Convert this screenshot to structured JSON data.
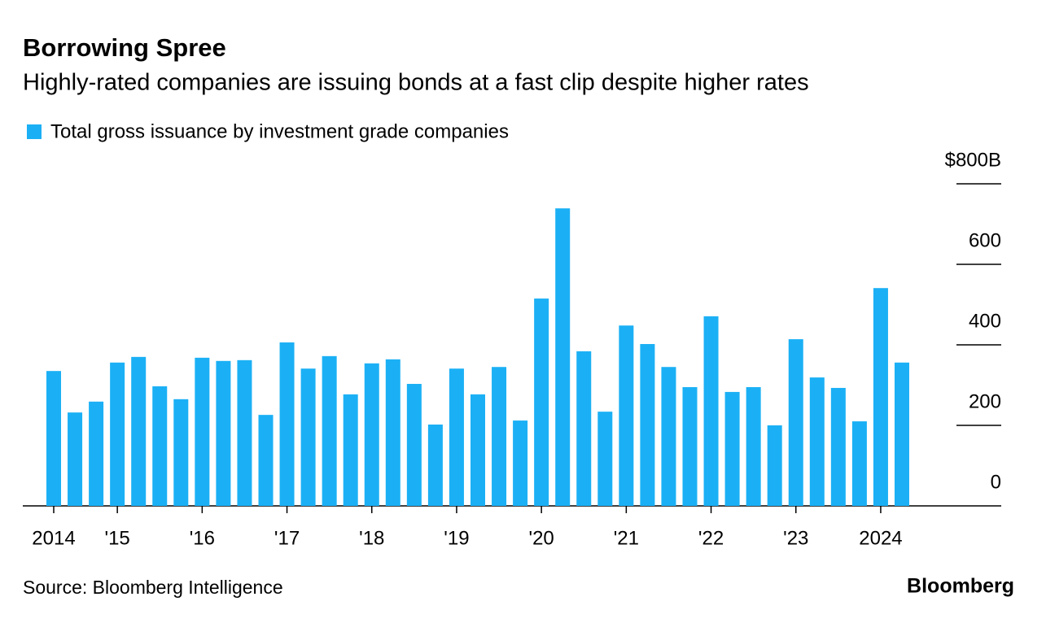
{
  "chart_data": {
    "type": "bar",
    "title": "Borrowing Spree",
    "subtitle": "Highly-rated companies are issuing bonds at a fast clip despite higher rates",
    "source": "Source: Bloomberg Intelligence",
    "brand": "Bloomberg",
    "series": [
      {
        "name": "Total gross issuance by investment grade companies",
        "color": "#1bb0f5",
        "values": [
          335,
          232,
          259,
          356,
          370,
          297,
          265,
          368,
          360,
          362,
          226,
          406,
          341,
          372,
          277,
          354,
          364,
          303,
          202,
          341,
          277,
          345,
          212,
          515,
          739,
          384,
          234,
          448,
          402,
          345,
          295,
          471,
          283,
          295,
          200,
          414,
          319,
          293,
          210,
          541,
          356
        ]
      }
    ],
    "categories": [
      "2014",
      null,
      null,
      "'15",
      null,
      null,
      null,
      "'16",
      null,
      null,
      null,
      "'17",
      null,
      null,
      null,
      "'18",
      null,
      null,
      null,
      "'19",
      null,
      null,
      null,
      "'20",
      null,
      null,
      null,
      "'21",
      null,
      null,
      null,
      "'22",
      null,
      null,
      null,
      "'23",
      null,
      null,
      null,
      "2024",
      null
    ],
    "ylim": [
      0,
      800
    ],
    "yticks": [
      0,
      200,
      400,
      600,
      {
        "value": 800,
        "label": "$800B"
      }
    ]
  }
}
